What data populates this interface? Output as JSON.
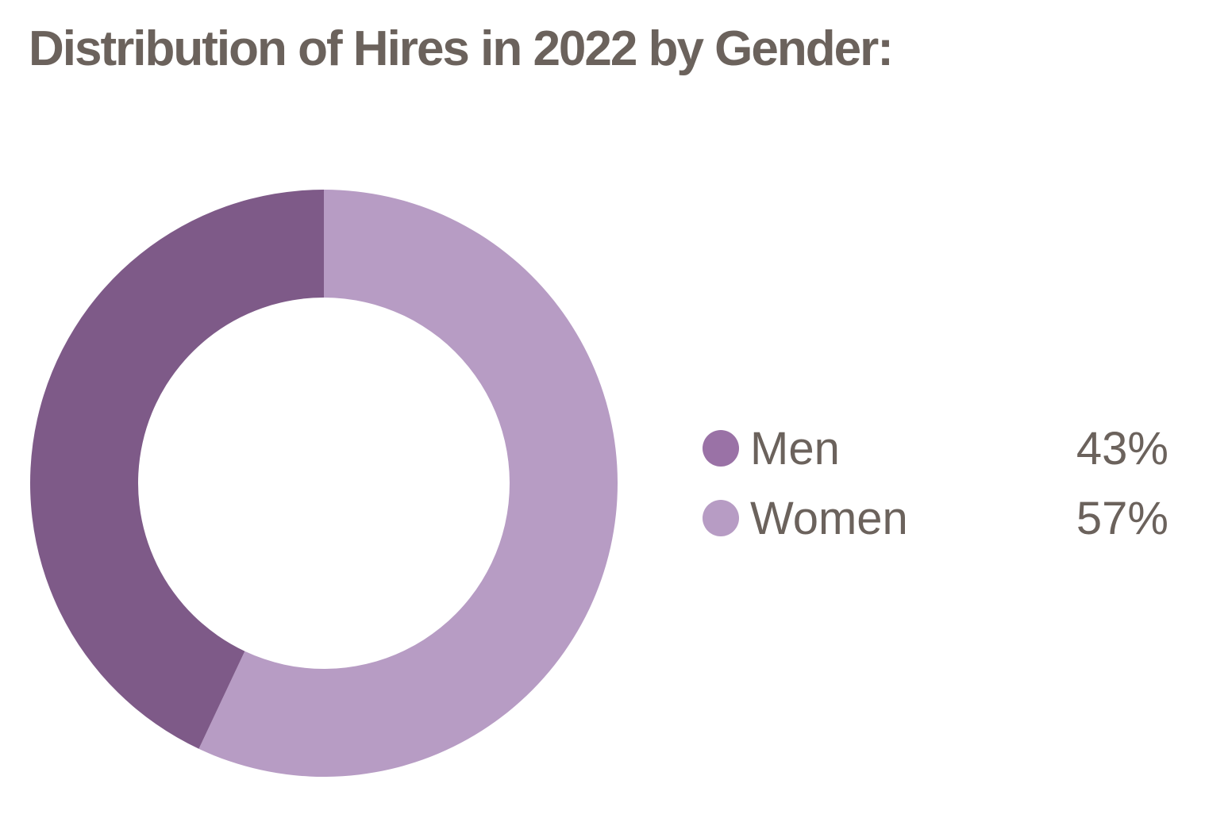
{
  "chart_data": {
    "type": "pie",
    "style": "donut",
    "title": "Distribution of Hires in 2022 by Gender:",
    "categories": [
      "Men",
      "Women"
    ],
    "values": [
      43,
      57
    ],
    "unit": "%",
    "value_labels": [
      "43%",
      "57%"
    ],
    "colors": [
      "#7e5a88",
      "#b79cc4"
    ],
    "legend_colors": [
      "#9a72a6",
      "#b79cc4"
    ],
    "legend_position": "right"
  }
}
